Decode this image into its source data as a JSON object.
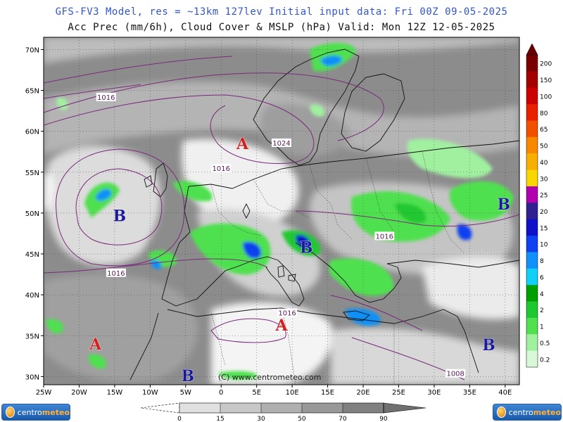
{
  "header": {
    "line1": "GFS-FV3 Model, res = ~13km 127lev   Initial input data: Fri 00Z 09-05-2025",
    "line2": "Acc Prec (mm/6h), Cloud Cover & MSLP (hPa)  Valid: Mon 12Z 12-05-2025"
  },
  "axes": {
    "lat_labels": [
      "70N",
      "65N",
      "60N",
      "55N",
      "50N",
      "45N",
      "40N",
      "35N",
      "30N"
    ],
    "lon_labels": [
      "25W",
      "20W",
      "15W",
      "10W",
      "5W",
      "0",
      "5E",
      "10E",
      "15E",
      "20E",
      "25E",
      "30E",
      "35E",
      "40E"
    ]
  },
  "precip_scale": {
    "labels": [
      "200",
      "150",
      "100",
      "80",
      "65",
      "50",
      "40",
      "30",
      "25",
      "20",
      "15",
      "10",
      "8",
      "6",
      "4",
      "2",
      "1",
      "0.5",
      "0.2"
    ],
    "colors": [
      "#7a0000",
      "#a40000",
      "#cc0000",
      "#e82000",
      "#f05000",
      "#f88800",
      "#f8b000",
      "#f8d800",
      "#b000b0",
      "#302090",
      "#1010c8",
      "#1040f0",
      "#1090f8",
      "#10d0f8",
      "#00a000",
      "#20c830",
      "#50e050",
      "#a0f0a0",
      "#d8f8d8"
    ]
  },
  "cloud_scale": {
    "labels": [
      "0",
      "15",
      "30",
      "50",
      "70",
      "90"
    ],
    "colors": [
      "#e0e0e0",
      "#c8c8c8",
      "#b0b0b0",
      "#989898",
      "#808080"
    ]
  },
  "pressure_centers": [
    {
      "type": "A",
      "lon": 3,
      "lat": 58.5,
      "color": "#cc2222"
    },
    {
      "type": "A",
      "lon": 8.5,
      "lat": 36.3,
      "color": "#cc2222"
    },
    {
      "type": "A",
      "lon": -17.7,
      "lat": 34,
      "color": "#cc2222"
    },
    {
      "type": "B",
      "lon": -14.3,
      "lat": 49.7,
      "color": "#1a1a99"
    },
    {
      "type": "B",
      "lon": 12,
      "lat": 45.8,
      "color": "#1a1a99"
    },
    {
      "type": "B",
      "lon": 39.8,
      "lat": 51.1,
      "color": "#1a1a99"
    },
    {
      "type": "B",
      "lon": 37.7,
      "lat": 33.9,
      "color": "#1a1a99"
    },
    {
      "type": "B",
      "lon": -4.7,
      "lat": 30.1,
      "color": "#1a1a99"
    }
  ],
  "isobar_labels": [
    {
      "text": "1016",
      "lon": -16.2,
      "lat": 64.2
    },
    {
      "text": "1024",
      "lon": 8.5,
      "lat": 58.6
    },
    {
      "text": "1016",
      "lon": 0,
      "lat": 55.5
    },
    {
      "text": "1016",
      "lon": -14.8,
      "lat": 42.7
    },
    {
      "text": "1016",
      "lon": 23,
      "lat": 47.2
    },
    {
      "text": "1016",
      "lon": 9.3,
      "lat": 37.8
    },
    {
      "text": "1008",
      "lon": 33,
      "lat": 30.4
    }
  ],
  "copyright": "(C) www.centrometeo.com",
  "logo": {
    "brand_a": "centro",
    "brand_b": "meteo"
  },
  "colors": {
    "title1": "#3355cc",
    "sea_cloudfree": "#a8a8a8",
    "land_cloudfree": "#f2f2f2"
  }
}
